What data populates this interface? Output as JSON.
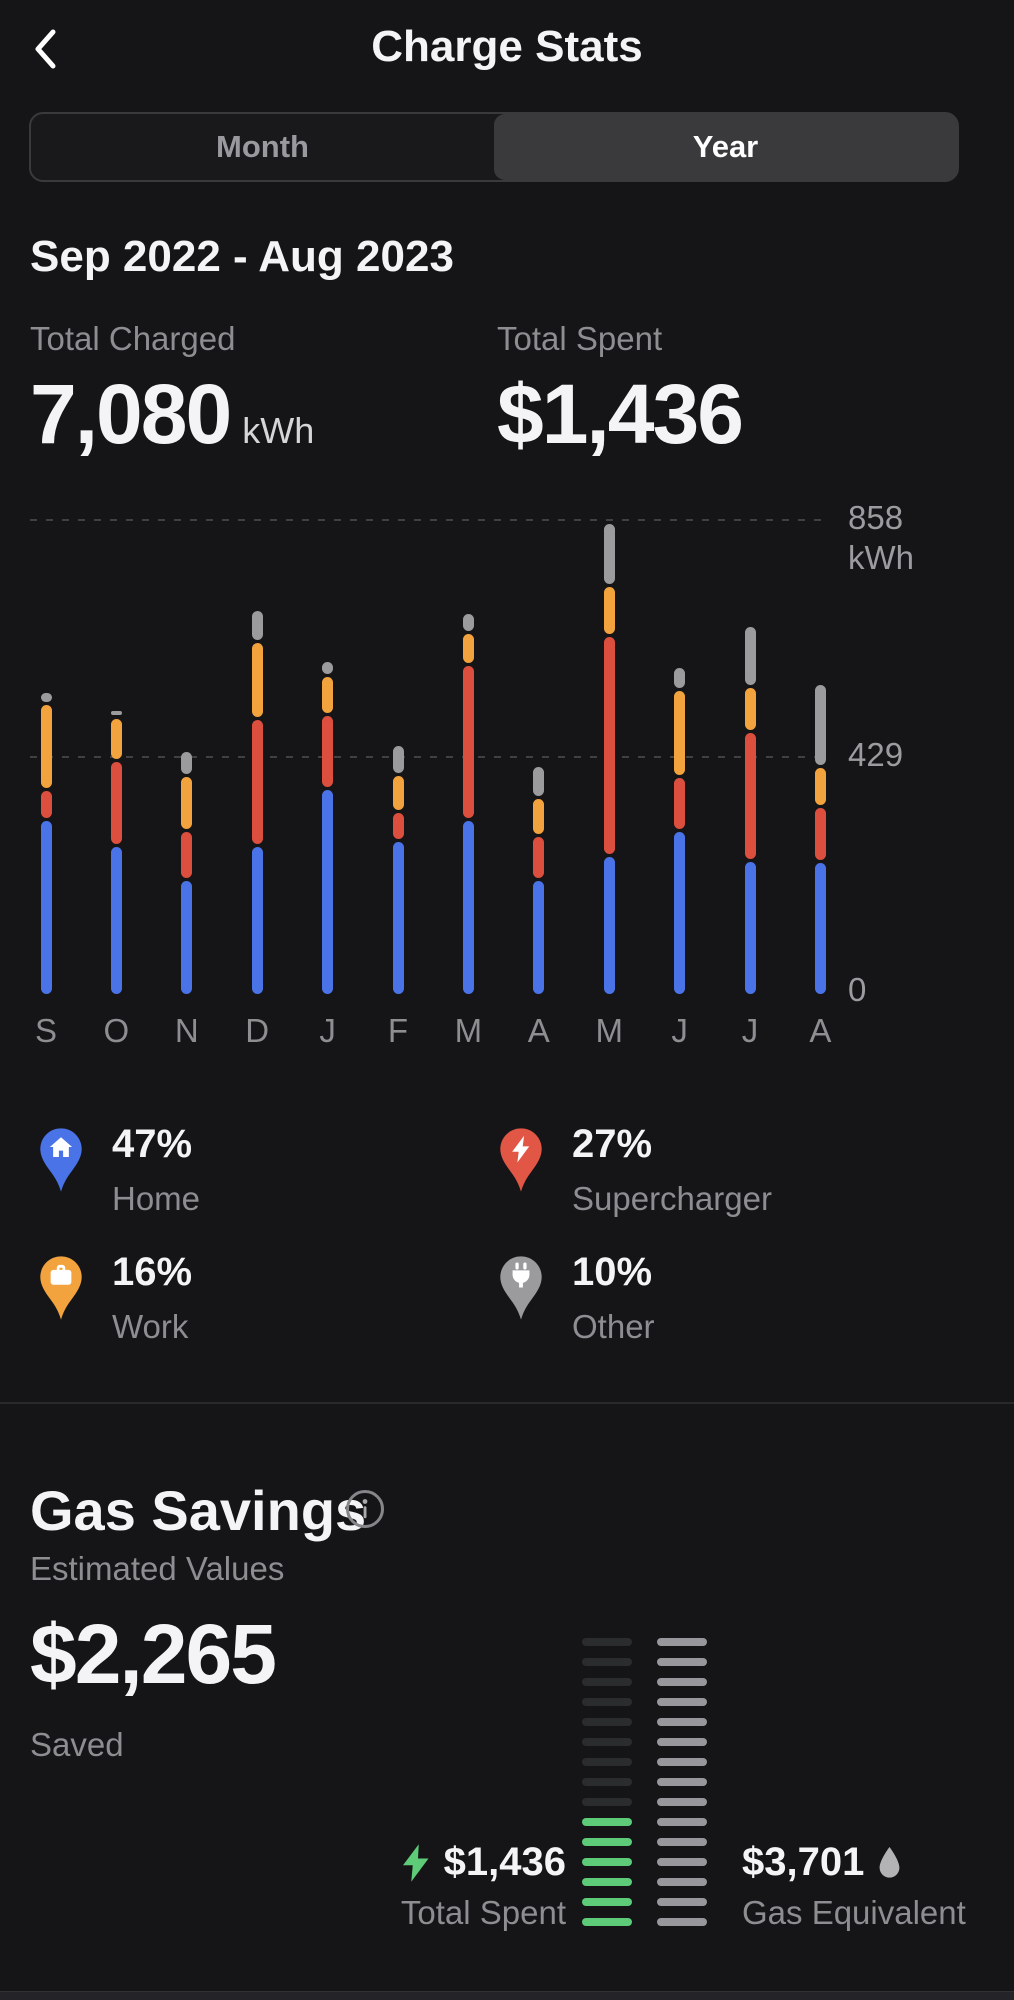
{
  "header": {
    "title": "Charge Stats"
  },
  "toggle": {
    "month_label": "Month",
    "year_label": "Year",
    "selected": "Year"
  },
  "period": "Sep 2022 - Aug 2023",
  "totals": {
    "charged_label": "Total Charged",
    "charged_value": "7,080",
    "charged_unit": "kWh",
    "spent_label": "Total Spent",
    "spent_value": "$1,436"
  },
  "chart_data": {
    "type": "bar",
    "stacked": true,
    "title": "Monthly charging by location (kWh)",
    "categories": [
      "S",
      "O",
      "N",
      "D",
      "J",
      "F",
      "M",
      "A",
      "M",
      "J",
      "J",
      "A"
    ],
    "series": [
      {
        "name": "Home",
        "color": "#4a73e8",
        "values": [
          320,
          273,
          210,
          273,
          375,
          282,
          320,
          210,
          255,
          300,
          246,
          243
        ]
      },
      {
        "name": "Supercharger",
        "color": "#dc4f3e",
        "values": [
          54,
          154,
          89,
          230,
          134,
          52,
          280,
          81,
          398,
          98,
          232,
          100
        ]
      },
      {
        "name": "Work",
        "color": "#f2a33d",
        "values": [
          156,
          78,
          100,
          138,
          72,
          67,
          58,
          69,
          90,
          157,
          83,
          72
        ]
      },
      {
        "name": "Other",
        "color": "#9b9b9d",
        "values": [
          22,
          14,
          45,
          58,
          27,
          55,
          36,
          57,
          115,
          42,
          110,
          150
        ]
      }
    ],
    "ylim": [
      0,
      858
    ],
    "yticks": [
      0,
      429,
      858
    ],
    "grid": "dashed horizontal lines at 429 and 858",
    "legend_position": "below"
  },
  "axis": {
    "top": "858",
    "unit": "kWh",
    "mid": "429",
    "zero": "0"
  },
  "legend": {
    "items": [
      {
        "percent": "47%",
        "label": "Home",
        "color": "#4a73e8",
        "icon": "home-pin"
      },
      {
        "percent": "27%",
        "label": "Supercharger",
        "color": "#e25645",
        "icon": "supercharger-pin"
      },
      {
        "percent": "16%",
        "label": "Work",
        "color": "#f2a33d",
        "icon": "work-pin"
      },
      {
        "percent": "10%",
        "label": "Other",
        "color": "#9b9b9d",
        "icon": "other-pin"
      }
    ]
  },
  "gas_savings": {
    "title": "Gas Savings",
    "subtitle": "Estimated Values",
    "saved_value": "$2,265",
    "saved_label": "Saved",
    "comparison": {
      "rows": 15,
      "spent": {
        "value": "$1,436",
        "label": "Total Spent",
        "filled_rows": 6,
        "filled_color": "#5ecb78",
        "unfilled_color": "#2b2c2e",
        "icon": "bolt-icon"
      },
      "gas": {
        "value": "$3,701",
        "label": "Gas Equivalent",
        "filled_rows": 15,
        "filled_color": "#98989c",
        "unfilled_color": "#2b2c2e",
        "icon": "droplet-icon"
      }
    }
  }
}
